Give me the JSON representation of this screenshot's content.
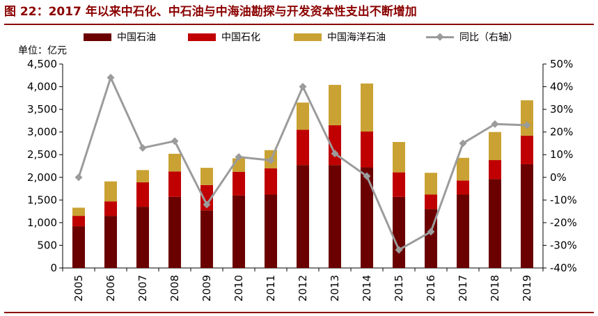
{
  "title": "图 22：2017 年以来中石化、中石油与中海油勘探与开发资本性支出不断增加",
  "unit_label": "单位：亿元",
  "colors": {
    "title": "#8b0000",
    "petrochina": "#6b0000",
    "sinopec": "#c00000",
    "cnooc": "#c9a233",
    "yoy_line": "#9b9b9b"
  },
  "legend": [
    {
      "key": "petrochina",
      "label": "中国石油"
    },
    {
      "key": "sinopec",
      "label": "中国石化"
    },
    {
      "key": "cnooc",
      "label": "中国海洋石油"
    },
    {
      "key": "yoy",
      "label": "同比（右轴）"
    }
  ],
  "chart_data": {
    "type": "bar",
    "stacked": true,
    "categories": [
      "2005",
      "2006",
      "2007",
      "2008",
      "2009",
      "2010",
      "2011",
      "2012",
      "2013",
      "2014",
      "2015",
      "2016",
      "2017",
      "2018",
      "2019"
    ],
    "series": [
      {
        "name": "中国石油",
        "key": "petrochina",
        "values": [
          920,
          1150,
          1350,
          1570,
          1270,
          1600,
          1620,
          2270,
          2270,
          2220,
          1570,
          1300,
          1620,
          1960,
          2290
        ]
      },
      {
        "name": "中国石化",
        "key": "sinopec",
        "values": [
          230,
          320,
          540,
          560,
          560,
          520,
          580,
          780,
          880,
          790,
          540,
          320,
          310,
          420,
          630
        ]
      },
      {
        "name": "中国海洋石油",
        "key": "cnooc",
        "values": [
          180,
          440,
          270,
          390,
          380,
          300,
          400,
          600,
          890,
          1060,
          670,
          480,
          500,
          620,
          780
        ]
      }
    ],
    "line_series": {
      "name": "同比（右轴）",
      "axis": "right",
      "values": [
        0,
        44,
        13,
        16,
        -12,
        9,
        7.5,
        40,
        10.5,
        0.5,
        -32,
        -24,
        15,
        23.5,
        23
      ]
    },
    "y_left": {
      "min": 0,
      "max": 4500,
      "step": 500,
      "tick_labels": [
        "0",
        "500",
        "1,000",
        "1,500",
        "2,000",
        "2,500",
        "3,000",
        "3,500",
        "4,000",
        "4,500"
      ]
    },
    "y_right": {
      "min": -40,
      "max": 50,
      "step": 10,
      "tick_labels": [
        "-40%",
        "-30%",
        "-20%",
        "-10%",
        "0%",
        "10%",
        "20%",
        "30%",
        "40%",
        "50%"
      ]
    },
    "grid": false,
    "legend_position": "top"
  }
}
